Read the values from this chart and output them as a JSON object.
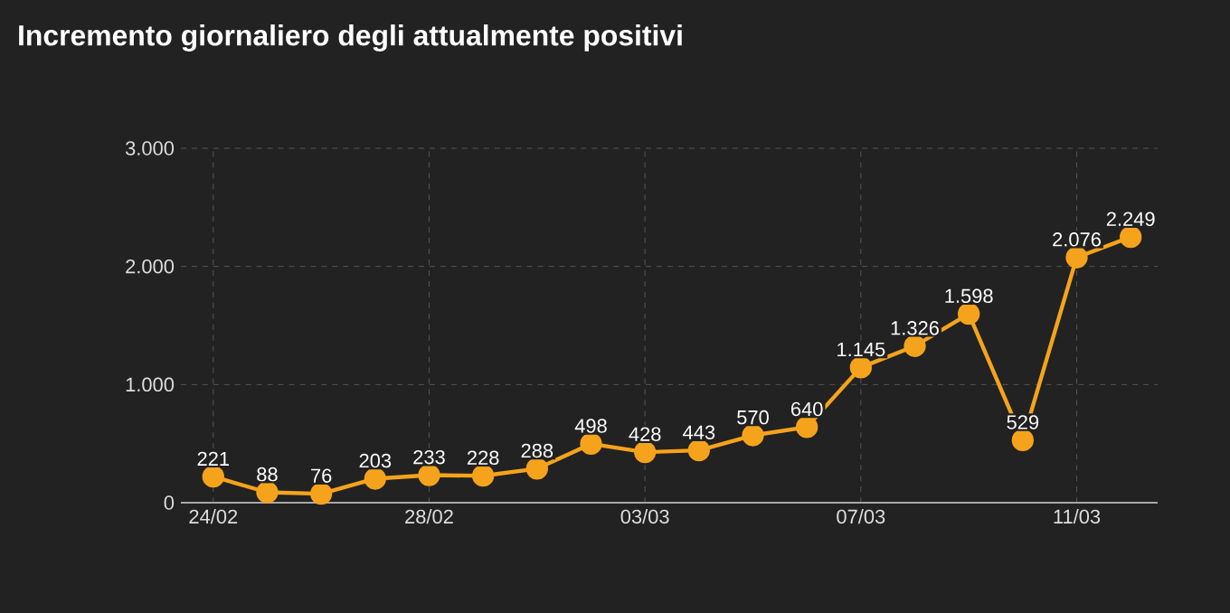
{
  "chart_data": {
    "type": "line",
    "title": "Incremento giornaliero degli attualmente positivi",
    "categories": [
      "24/02",
      null,
      null,
      null,
      "28/02",
      null,
      null,
      null,
      "03/03",
      null,
      null,
      null,
      "07/03",
      null,
      null,
      null,
      "11/03",
      null
    ],
    "series": [
      {
        "color": "#f5a31c",
        "values": [
          221,
          88,
          76,
          203,
          233,
          228,
          288,
          498,
          428,
          443,
          570,
          640,
          1145,
          1326,
          1598,
          529,
          2076,
          2249
        ],
        "value_labels": [
          "221",
          "88",
          "76",
          "203",
          "233",
          "228",
          "288",
          "498",
          "428",
          "443",
          "570",
          "640",
          "1.145",
          "1.326",
          "1.598",
          "529",
          "2.076",
          "2.249"
        ]
      }
    ],
    "ylim": [
      0,
      3000
    ],
    "yticks": [
      0,
      {
        "value": 1000,
        "label": "1.000"
      },
      {
        "value": 2000,
        "label": "2.000"
      },
      {
        "value": 3000,
        "label": "3.000"
      }
    ],
    "grid": true,
    "marker": "circle",
    "line_style": "solid"
  }
}
